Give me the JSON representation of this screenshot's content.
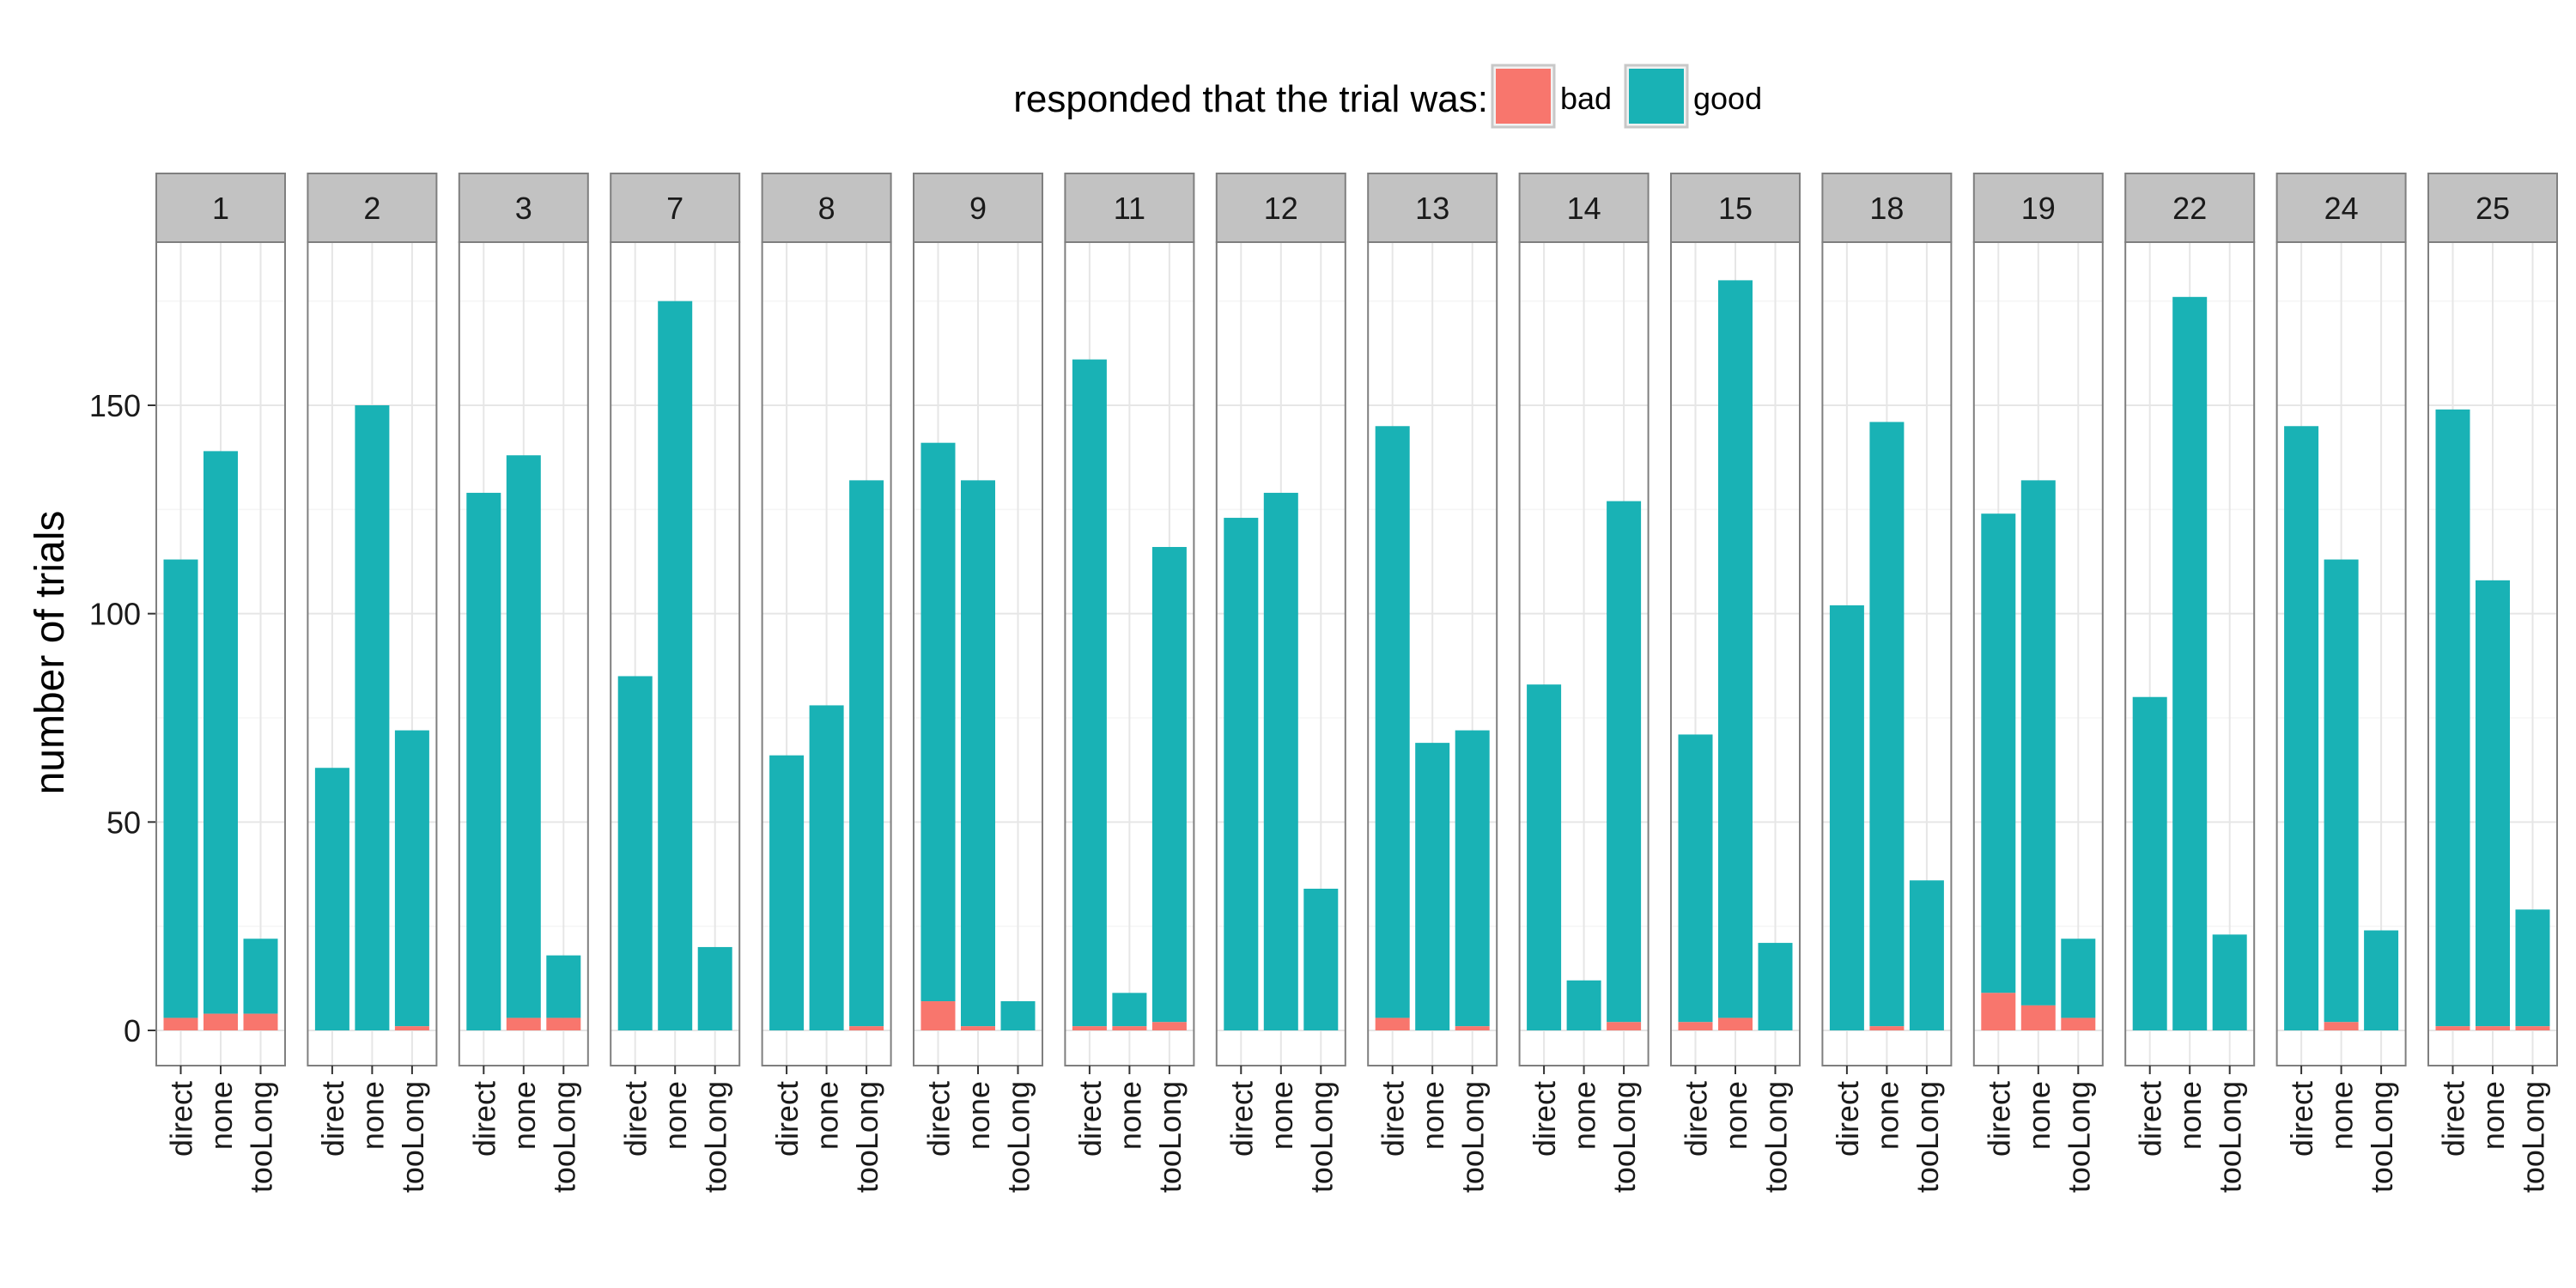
{
  "chart_data": {
    "type": "bar",
    "stacked": true,
    "ylabel": "number of trials",
    "xlabel": "",
    "ylim": [
      0,
      190
    ],
    "y_ticks": [
      "0",
      "50",
      "100",
      "150"
    ],
    "y_tick_values": [
      0,
      50,
      100,
      150
    ],
    "grid": true,
    "legend": {
      "title": "responded that the trial was:",
      "position": "top",
      "entries": [
        {
          "label": "bad",
          "color": "#F8766D"
        },
        {
          "label": "good",
          "color": "#19B2B5"
        }
      ]
    },
    "categories": [
      "direct",
      "none",
      "tooLong"
    ],
    "panels": [
      {
        "label": "1",
        "bad": [
          3,
          4,
          4
        ],
        "good": [
          110,
          135,
          18
        ]
      },
      {
        "label": "2",
        "bad": [
          0,
          0,
          1
        ],
        "good": [
          63,
          150,
          71
        ]
      },
      {
        "label": "3",
        "bad": [
          0,
          3,
          3
        ],
        "good": [
          129,
          135,
          15
        ]
      },
      {
        "label": "7",
        "bad": [
          0,
          0,
          0
        ],
        "good": [
          85,
          175,
          20
        ]
      },
      {
        "label": "8",
        "bad": [
          0,
          0,
          1
        ],
        "good": [
          66,
          78,
          131
        ]
      },
      {
        "label": "9",
        "bad": [
          7,
          1,
          0
        ],
        "good": [
          134,
          131,
          7
        ]
      },
      {
        "label": "11",
        "bad": [
          1,
          1,
          2
        ],
        "good": [
          160,
          8,
          114
        ]
      },
      {
        "label": "12",
        "bad": [
          0,
          0,
          0
        ],
        "good": [
          123,
          129,
          34
        ]
      },
      {
        "label": "13",
        "bad": [
          3,
          0,
          1
        ],
        "good": [
          142,
          69,
          71
        ]
      },
      {
        "label": "14",
        "bad": [
          0,
          0,
          2
        ],
        "good": [
          83,
          12,
          125
        ]
      },
      {
        "label": "15",
        "bad": [
          2,
          3,
          0
        ],
        "good": [
          69,
          177,
          21
        ]
      },
      {
        "label": "18",
        "bad": [
          0,
          1,
          0
        ],
        "good": [
          102,
          145,
          36
        ]
      },
      {
        "label": "19",
        "bad": [
          9,
          6,
          3
        ],
        "good": [
          115,
          126,
          19
        ]
      },
      {
        "label": "22",
        "bad": [
          0,
          0,
          0
        ],
        "good": [
          80,
          176,
          23
        ]
      },
      {
        "label": "24",
        "bad": [
          0,
          2,
          0
        ],
        "good": [
          145,
          111,
          24
        ]
      },
      {
        "label": "25",
        "bad": [
          1,
          1,
          1
        ],
        "good": [
          148,
          107,
          28
        ]
      }
    ],
    "colors": {
      "bad": "#F8766D",
      "good": "#19B2B5",
      "strip_bg": "#C2C2C2",
      "panel_border": "#7f7f7f",
      "grid_major": "#E6E6E6",
      "grid_minor": "#F5F5F5"
    }
  }
}
